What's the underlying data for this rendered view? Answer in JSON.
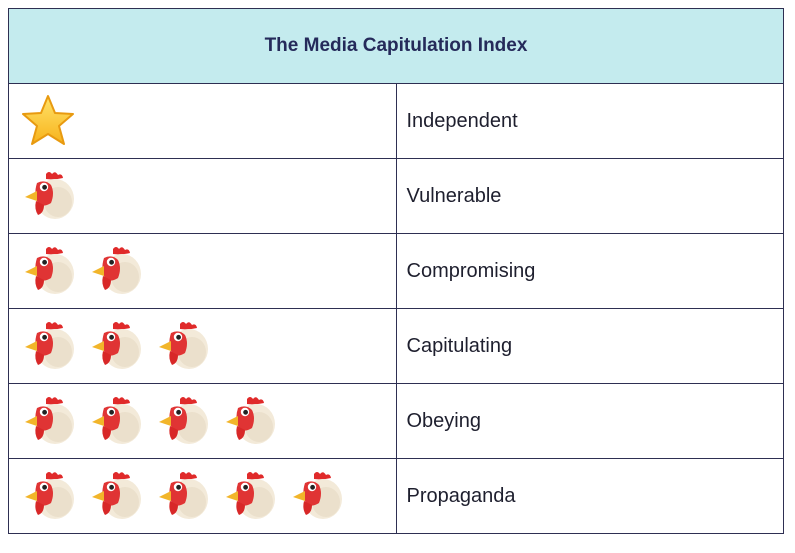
{
  "table": {
    "title": "The Media Capitulation Index",
    "rows": [
      {
        "icon": "star-icon",
        "count": 1,
        "label": "Independent"
      },
      {
        "icon": "chicken-icon",
        "count": 1,
        "label": "Vulnerable"
      },
      {
        "icon": "chicken-icon",
        "count": 2,
        "label": "Compromising"
      },
      {
        "icon": "chicken-icon",
        "count": 3,
        "label": "Capitulating"
      },
      {
        "icon": "chicken-icon",
        "count": 4,
        "label": "Obeying"
      },
      {
        "icon": "chicken-icon",
        "count": 5,
        "label": "Propaganda"
      }
    ]
  },
  "colors": {
    "header_background": "#c4ebee",
    "header_text": "#252a5a",
    "border": "#2e2f52"
  }
}
